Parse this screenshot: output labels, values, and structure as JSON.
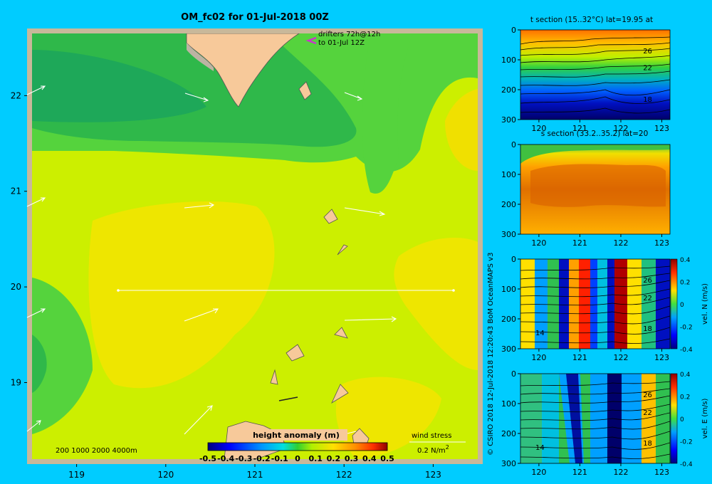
{
  "main_map": {
    "title": "OM_fc02 for 01-Jul-2018 00Z",
    "x_ticks": [
      "119",
      "120",
      "121",
      "122",
      "123"
    ],
    "x_tick_values": [
      119,
      120,
      121,
      122,
      123
    ],
    "y_ticks": [
      "22",
      "21",
      "20",
      "19"
    ],
    "y_tick_values": [
      22,
      21,
      20,
      19
    ],
    "xlim": [
      118.5,
      123.5
    ],
    "ylim": [
      18.2,
      22.65
    ],
    "drifters_line1": "drifters 72h@12h",
    "drifters_line2": "to 01-Jul 12Z",
    "depth_legend": "200  1000  2000  4000m",
    "colorbar_title": "height anomaly (m)",
    "colorbar_ticks": [
      "-0.5",
      "-0.4",
      "-0.3",
      "-0.2",
      "-0.1",
      "0",
      "0.1",
      "0.2",
      "0.3",
      "0.4",
      "0.5"
    ],
    "colorbar_range": [
      -0.5,
      0.5
    ],
    "wind_label": "wind stress",
    "wind_unit_main": "0.2 N/m",
    "wind_unit_sup": "2",
    "colors": {
      "land": "#f7c99a",
      "coast_gray": "#bdb3a3",
      "frame": "#c8b89a",
      "arrow": "#ffffff",
      "drifter": "#cc33cc"
    }
  },
  "copyright": "© CSIRO 2018  12-Jul-2018 12:20:43 BoM OceanMAPS v3",
  "sections": [
    {
      "title": "t section (15..32°C) lat=19.95 at",
      "y_ticks": [
        "0",
        "100",
        "200",
        "300"
      ],
      "y_tick_values": [
        0,
        100,
        200,
        300
      ],
      "x_ticks": [
        "120",
        "121",
        "122",
        "123"
      ],
      "x_tick_values": [
        120,
        121,
        122,
        123
      ],
      "xlim": [
        119.55,
        123.2
      ],
      "ylim": [
        0,
        300
      ],
      "contour_labels": [
        "26",
        "22",
        "18"
      ],
      "contour_label_values": [
        26,
        22,
        18
      ]
    },
    {
      "title": "s section (33.2..35.2) lat=20",
      "y_ticks": [
        "0",
        "100",
        "200",
        "300"
      ],
      "y_tick_values": [
        0,
        100,
        200,
        300
      ],
      "x_ticks": [
        "120",
        "121",
        "122",
        "123"
      ],
      "x_tick_values": [
        120,
        121,
        122,
        123
      ],
      "xlim": [
        119.55,
        123.2
      ],
      "ylim": [
        0,
        300
      ]
    },
    {
      "title": "",
      "y_ticks": [
        "0",
        "100",
        "200",
        "300"
      ],
      "y_tick_values": [
        0,
        100,
        200,
        300
      ],
      "x_ticks": [
        "120",
        "121",
        "122",
        "123"
      ],
      "x_tick_values": [
        120,
        121,
        122,
        123
      ],
      "xlim": [
        119.55,
        123.2
      ],
      "ylim": [
        0,
        300
      ],
      "contour_labels": [
        "26",
        "22",
        "18",
        "14"
      ],
      "contour_label_values": [
        26,
        22,
        18,
        14
      ],
      "colorbar_label": "vel. N (m/s)",
      "colorbar_ticks": [
        "0.4",
        "0.2",
        "0",
        "-0.2",
        "-0.4"
      ]
    },
    {
      "title": "",
      "y_ticks": [
        "0",
        "100",
        "200",
        "300"
      ],
      "y_tick_values": [
        0,
        100,
        200,
        300
      ],
      "x_ticks": [
        "120",
        "121",
        "122",
        "123"
      ],
      "x_tick_values": [
        120,
        121,
        122,
        123
      ],
      "xlim": [
        119.55,
        123.2
      ],
      "ylim": [
        0,
        300
      ],
      "contour_labels": [
        "26",
        "22",
        "18",
        "14"
      ],
      "contour_label_values": [
        26,
        22,
        18,
        14
      ],
      "colorbar_label": "vel. E (m/s)",
      "colorbar_ticks": [
        "0.4",
        "0.2",
        "0",
        "-0.2",
        "-0.4"
      ]
    }
  ],
  "chart_data": [
    {
      "type": "heatmap",
      "title": "OM_fc02 for 01-Jul-2018 00Z",
      "xlabel": "",
      "ylabel": "",
      "xlim": [
        118.5,
        123.5
      ],
      "ylim": [
        18.2,
        22.65
      ],
      "colorbar": {
        "label": "height anomaly (m)",
        "range": [
          -0.5,
          0.5
        ]
      },
      "annotations": [
        "drifters 72h@12h",
        "to 01-Jul 12Z",
        "200  1000  2000  4000m",
        "wind stress",
        "0.2 N/m2"
      ]
    },
    {
      "type": "heatmap",
      "title": "t section (15..32°C) lat=19.95 at",
      "xlim": [
        119.55,
        123.2
      ],
      "ylim": [
        300,
        0
      ],
      "contour_labels": [
        26,
        22,
        18
      ]
    },
    {
      "type": "heatmap",
      "title": "s section (33.2..35.2) lat=20",
      "xlim": [
        119.55,
        123.2
      ],
      "ylim": [
        300,
        0
      ]
    },
    {
      "type": "heatmap",
      "title": "",
      "colorbar": {
        "label": "vel. N (m/s)",
        "range": [
          -0.4,
          0.4
        ]
      },
      "xlim": [
        119.55,
        123.2
      ],
      "ylim": [
        300,
        0
      ],
      "contour_labels": [
        26,
        22,
        18,
        14
      ]
    },
    {
      "type": "heatmap",
      "title": "",
      "colorbar": {
        "label": "vel. E (m/s)",
        "range": [
          -0.4,
          0.4
        ]
      },
      "xlim": [
        119.55,
        123.2
      ],
      "ylim": [
        300,
        0
      ],
      "contour_labels": [
        26,
        22,
        18,
        14
      ]
    }
  ]
}
